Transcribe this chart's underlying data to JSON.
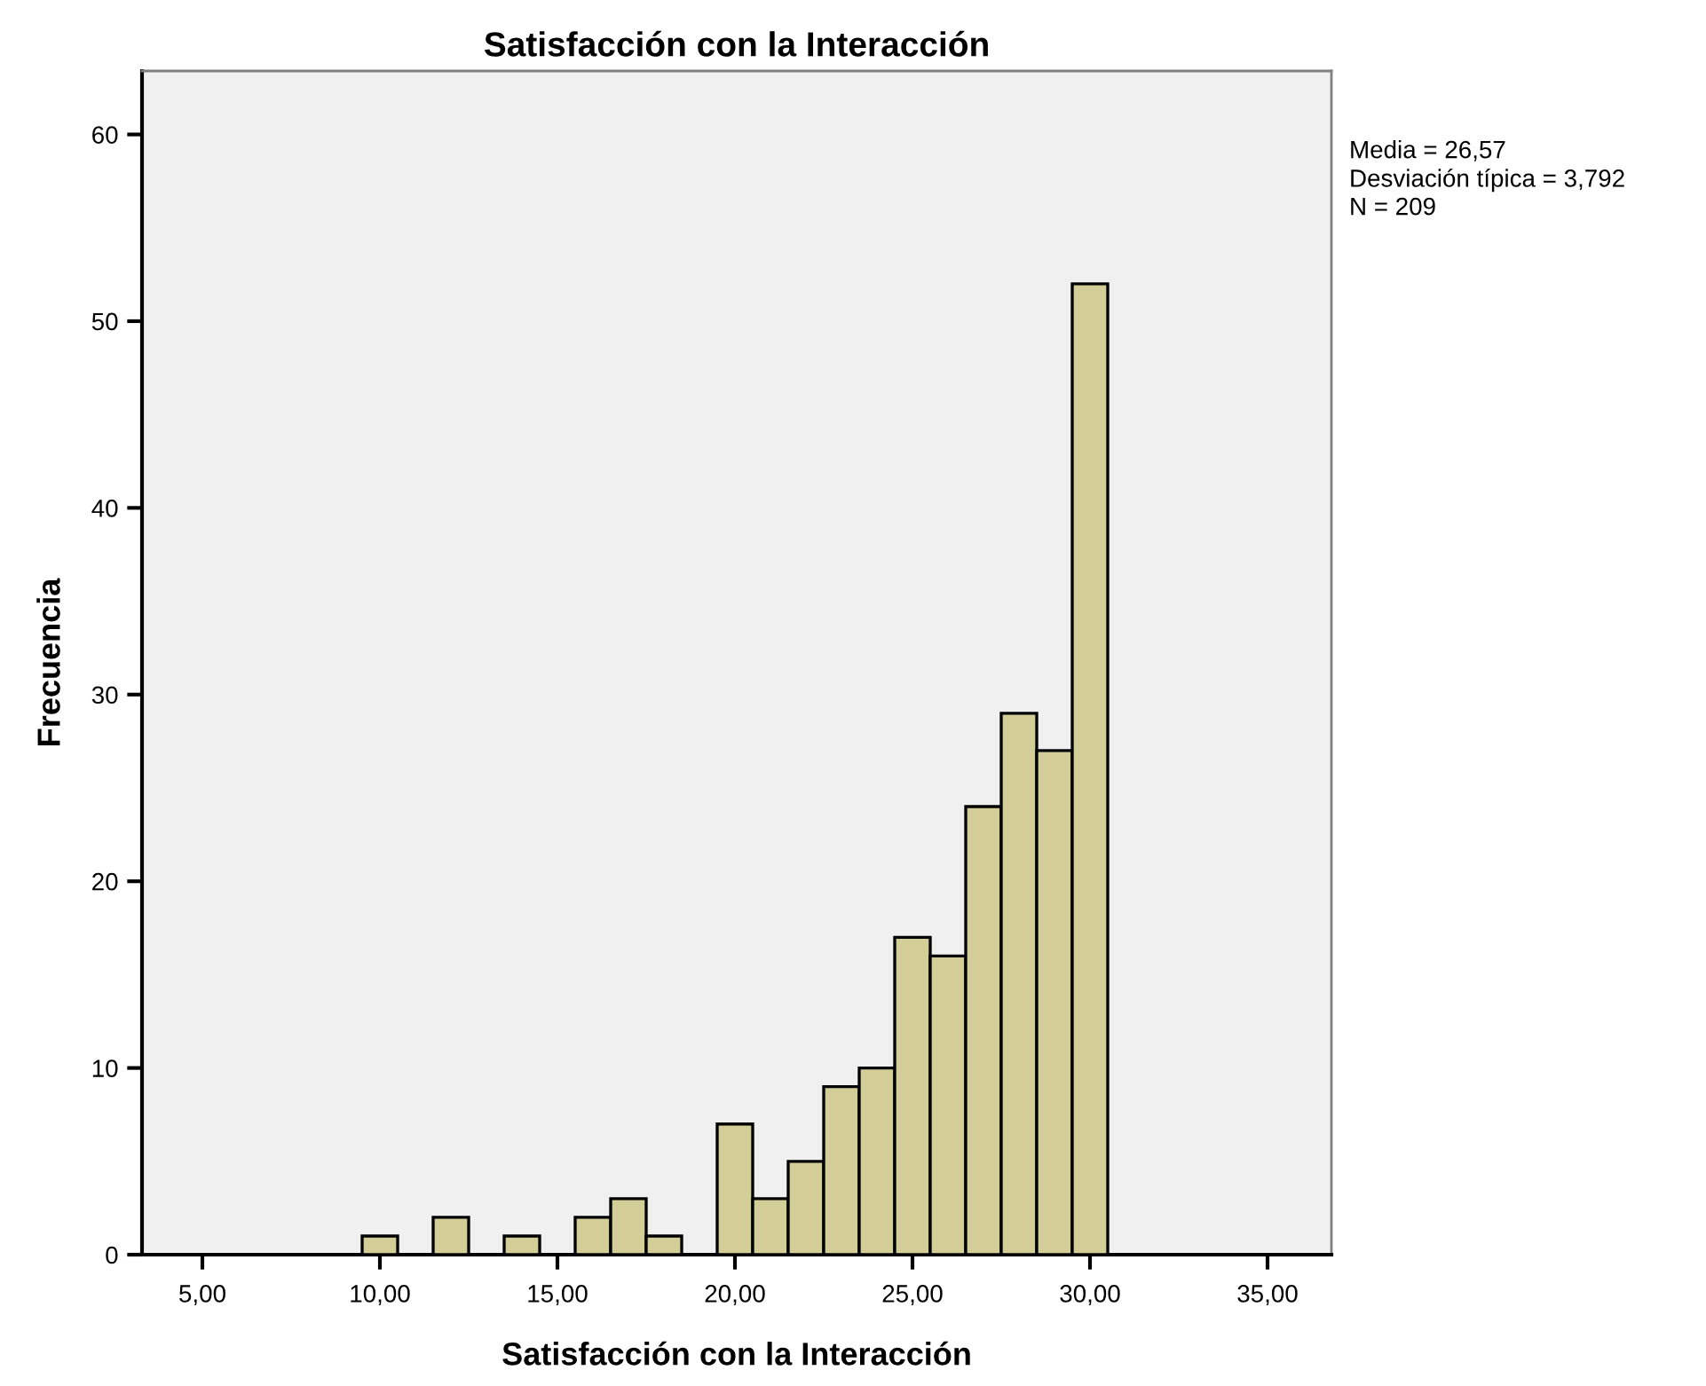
{
  "chart_data": {
    "type": "histogram",
    "title": "Satisfacción con la Interacción",
    "xlabel": "Satisfacción con la Interacción",
    "ylabel": "Frecuencia",
    "bins": [
      9.5,
      10.5,
      11.5,
      12.5,
      13.5,
      14.5,
      15.5,
      16.5,
      17.5,
      18.5,
      19.5,
      20.5,
      21.5,
      22.5,
      23.5,
      24.5,
      25.5,
      26.5,
      27.5,
      28.5,
      29.5,
      30.5
    ],
    "values": [
      1,
      0,
      2,
      0,
      1,
      0,
      2,
      3,
      1,
      0,
      7,
      3,
      5,
      9,
      10,
      17,
      16,
      24,
      29,
      27,
      52
    ],
    "color": "#d3ce97",
    "xlim": [
      3.3,
      36.8
    ],
    "xticks": [
      {
        "value": 5,
        "label": "5,00"
      },
      {
        "value": 10,
        "label": "10,00"
      },
      {
        "value": 15,
        "label": "15,00"
      },
      {
        "value": 20,
        "label": "20,00"
      },
      {
        "value": 25,
        "label": "25,00"
      },
      {
        "value": 30,
        "label": "30,00"
      },
      {
        "value": 35,
        "label": "35,00"
      }
    ],
    "ylim": [
      0,
      63.4
    ],
    "yticks": [
      0,
      10,
      20,
      30,
      40,
      50,
      60
    ],
    "annotations": [
      "Media = 26,57",
      "Desviación típica = 3,792",
      "N = 209"
    ],
    "grid": false,
    "legend": false
  }
}
